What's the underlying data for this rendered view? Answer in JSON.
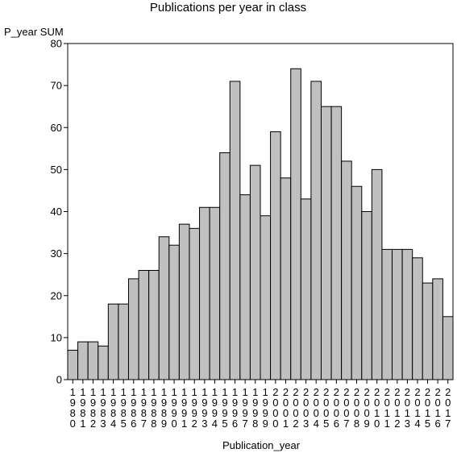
{
  "chart_data": {
    "type": "bar",
    "title": "Publications per year in class",
    "xlabel": "Publication_year",
    "ylabel": "P_year SUM",
    "ylim": [
      0,
      80
    ],
    "yticks": [
      0,
      10,
      20,
      30,
      40,
      50,
      60,
      70,
      80
    ],
    "grid": false,
    "bar_color": "#c0c0c0",
    "categories": [
      "1980",
      "1981",
      "1982",
      "1983",
      "1984",
      "1985",
      "1986",
      "1987",
      "1988",
      "1989",
      "1990",
      "1991",
      "1992",
      "1993",
      "1994",
      "1995",
      "1996",
      "1997",
      "1998",
      "1999",
      "2000",
      "2001",
      "2002",
      "2003",
      "2004",
      "2005",
      "2006",
      "2007",
      "2008",
      "2009",
      "2010",
      "2011",
      "2012",
      "2013",
      "2014",
      "2015",
      "2016",
      "2017"
    ],
    "values": [
      7,
      9,
      9,
      8,
      18,
      18,
      24,
      26,
      26,
      34,
      32,
      37,
      36,
      41,
      41,
      54,
      71,
      44,
      51,
      39,
      59,
      48,
      74,
      43,
      71,
      65,
      65,
      52,
      46,
      40,
      50,
      31,
      31,
      31,
      29,
      23,
      24,
      15
    ]
  }
}
